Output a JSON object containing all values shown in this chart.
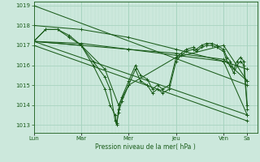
{
  "xlabel": "Pression niveau de la mer( hPa )",
  "background_color": "#cce8dc",
  "grid_color_major": "#a8d4c0",
  "grid_color_minor": "#b8dccb",
  "line_color": "#1a5c1a",
  "ylim": [
    1012.6,
    1019.2
  ],
  "yticks": [
    1013,
    1014,
    1015,
    1016,
    1017,
    1018,
    1019
  ],
  "day_labels": [
    "Lun",
    "Mar",
    "Mer",
    "Jeu",
    "Ven",
    "Sa"
  ],
  "day_positions": [
    0,
    28,
    56,
    84,
    112,
    126
  ],
  "num_hours": 132,
  "series": [
    {
      "points": [
        [
          0,
          1019.0
        ],
        [
          126,
          1015.0
        ]
      ]
    },
    {
      "points": [
        [
          0,
          1018.0
        ],
        [
          28,
          1017.8
        ],
        [
          56,
          1017.4
        ],
        [
          84,
          1016.8
        ],
        [
          112,
          1016.2
        ],
        [
          126,
          1013.5
        ]
      ]
    },
    {
      "points": [
        [
          0,
          1017.2
        ],
        [
          28,
          1017.0
        ],
        [
          56,
          1016.8
        ],
        [
          84,
          1016.6
        ],
        [
          112,
          1016.3
        ],
        [
          126,
          1015.2
        ]
      ]
    },
    {
      "points": [
        [
          0,
          1017.2
        ],
        [
          7,
          1017.8
        ],
        [
          14,
          1017.8
        ],
        [
          21,
          1017.5
        ],
        [
          28,
          1017.0
        ],
        [
          35,
          1016.2
        ],
        [
          42,
          1015.4
        ],
        [
          45,
          1014.8
        ],
        [
          48,
          1013.2
        ],
        [
          49,
          1013.0
        ],
        [
          50,
          1013.8
        ],
        [
          52,
          1014.4
        ],
        [
          56,
          1015.2
        ],
        [
          60,
          1016.0
        ],
        [
          63,
          1015.5
        ],
        [
          67,
          1015.3
        ],
        [
          70,
          1014.8
        ],
        [
          73,
          1015.0
        ],
        [
          76,
          1014.8
        ],
        [
          80,
          1015.0
        ],
        [
          84,
          1016.4
        ],
        [
          87,
          1016.6
        ],
        [
          90,
          1016.8
        ],
        [
          94,
          1016.9
        ],
        [
          96,
          1016.8
        ],
        [
          99,
          1017.0
        ],
        [
          102,
          1017.1
        ],
        [
          105,
          1017.1
        ],
        [
          108,
          1017.0
        ],
        [
          112,
          1016.8
        ],
        [
          114,
          1016.4
        ],
        [
          116,
          1016.2
        ],
        [
          118,
          1015.8
        ],
        [
          120,
          1016.2
        ],
        [
          122,
          1016.4
        ],
        [
          124,
          1016.2
        ],
        [
          126,
          1014.0
        ]
      ]
    },
    {
      "points": [
        [
          0,
          1017.2
        ],
        [
          7,
          1017.8
        ],
        [
          14,
          1017.8
        ],
        [
          21,
          1017.4
        ],
        [
          28,
          1017.0
        ],
        [
          35,
          1016.0
        ],
        [
          42,
          1014.8
        ],
        [
          45,
          1014.0
        ],
        [
          48,
          1013.5
        ],
        [
          49,
          1013.1
        ],
        [
          50,
          1013.6
        ],
        [
          52,
          1014.2
        ],
        [
          56,
          1015.0
        ],
        [
          60,
          1015.8
        ],
        [
          63,
          1015.2
        ],
        [
          67,
          1015.0
        ],
        [
          70,
          1014.6
        ],
        [
          73,
          1014.8
        ],
        [
          76,
          1014.6
        ],
        [
          80,
          1014.8
        ],
        [
          84,
          1016.2
        ],
        [
          87,
          1016.5
        ],
        [
          90,
          1016.7
        ],
        [
          94,
          1016.8
        ],
        [
          96,
          1016.7
        ],
        [
          99,
          1016.9
        ],
        [
          102,
          1017.0
        ],
        [
          105,
          1017.0
        ],
        [
          108,
          1016.9
        ],
        [
          112,
          1016.7
        ],
        [
          114,
          1016.2
        ],
        [
          116,
          1016.0
        ],
        [
          118,
          1015.6
        ],
        [
          120,
          1016.0
        ],
        [
          122,
          1016.2
        ],
        [
          124,
          1016.0
        ],
        [
          126,
          1013.8
        ]
      ]
    },
    {
      "points": [
        [
          0,
          1017.2
        ],
        [
          28,
          1017.0
        ],
        [
          42,
          1015.8
        ],
        [
          50,
          1014.0
        ],
        [
          56,
          1015.0
        ],
        [
          84,
          1016.4
        ],
        [
          112,
          1017.0
        ],
        [
          126,
          1015.2
        ]
      ]
    },
    {
      "points": [
        [
          0,
          1017.2
        ],
        [
          126,
          1013.5
        ]
      ]
    },
    {
      "points": [
        [
          0,
          1017.0
        ],
        [
          126,
          1013.2
        ]
      ]
    },
    {
      "points": [
        [
          0,
          1017.2
        ],
        [
          28,
          1017.1
        ],
        [
          56,
          1016.8
        ],
        [
          84,
          1016.5
        ],
        [
          112,
          1016.2
        ],
        [
          126,
          1015.8
        ]
      ]
    }
  ]
}
